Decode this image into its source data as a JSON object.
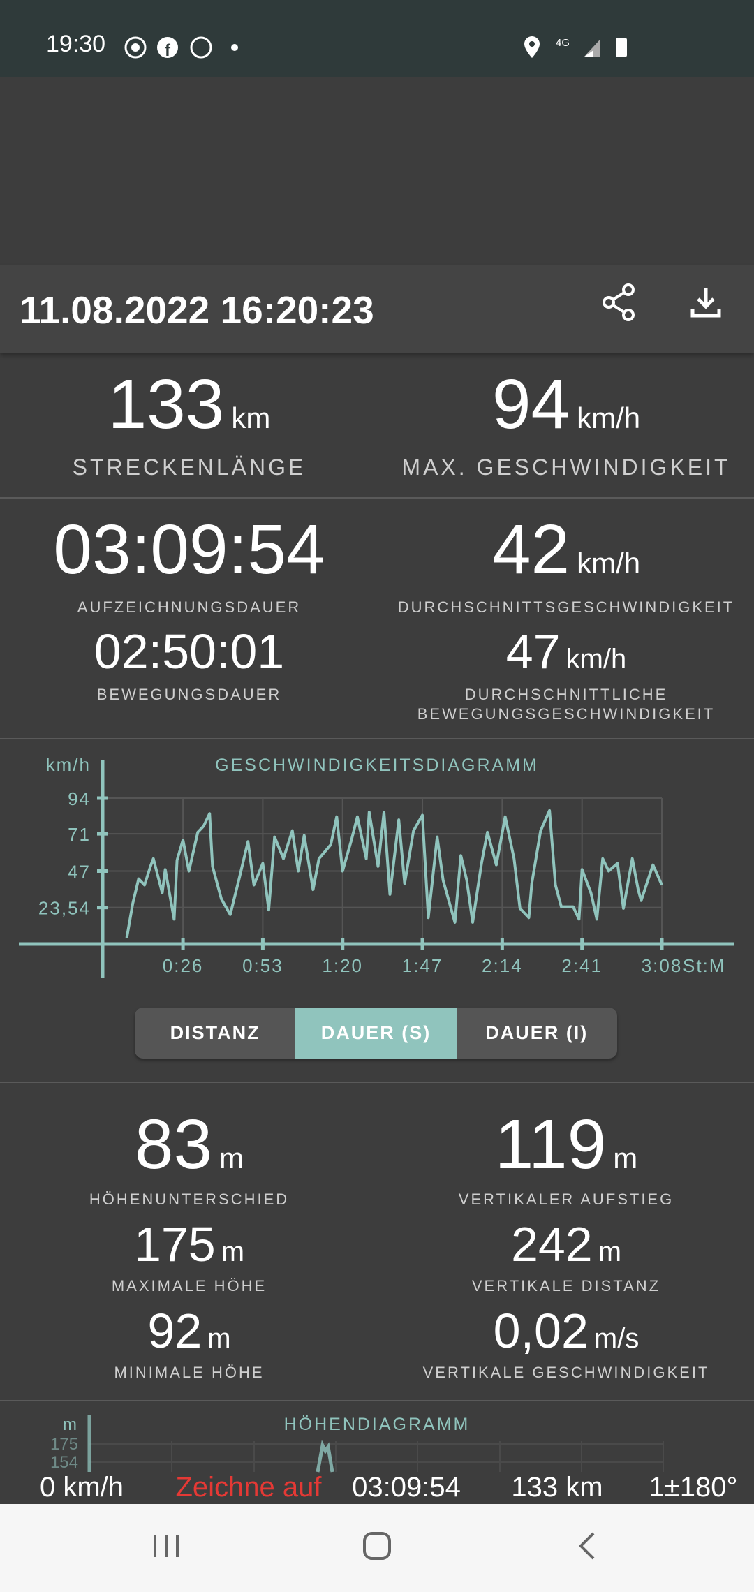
{
  "status_bar": {
    "time": "19:30",
    "network": "4G",
    "icons": [
      "record-icon",
      "facebook-icon",
      "whatsapp-icon",
      "dot-icon",
      "location-icon",
      "signal-icon",
      "battery-icon"
    ]
  },
  "header": {
    "title": "11.08.2022 16:20:23",
    "share_icon": "share-icon",
    "download_icon": "download-icon"
  },
  "summary": {
    "distance": {
      "value": "133",
      "unit": "km",
      "label": "STRECKENLÄNGE"
    },
    "max_speed": {
      "value": "94",
      "unit": "km/h",
      "label": "MAX. GESCHWINDIGKEIT"
    },
    "record_duration": {
      "value": "03:09:54",
      "label": "AUFZEICHNUNGSDAUER"
    },
    "moving_duration": {
      "value": "02:50:01",
      "label": "BEWEGUNGSDAUER"
    },
    "avg_speed": {
      "value": "42",
      "unit": "km/h",
      "label": "DURCHSCHNITTSGESCHWINDIGKEIT"
    },
    "avg_moving_speed": {
      "value": "47",
      "unit": "km/h",
      "label1": "DURCHSCHNITTLICHE",
      "label2": "BEWEGUNGSGESCHWINDIGKEIT"
    }
  },
  "chart_data": {
    "type": "line",
    "title": "GESCHWINDIGKEITSDIAGRAMM",
    "ylabel": "km/h",
    "xlabel": "St:M",
    "yticks": [
      "94",
      "71",
      "47",
      "23,54"
    ],
    "ytick_values": [
      94,
      71,
      47,
      23.54
    ],
    "xticks": [
      "0:26",
      "0:53",
      "1:20",
      "1:47",
      "2:14",
      "2:41",
      "3:08"
    ],
    "xtick_minutes": [
      26,
      53,
      80,
      107,
      134,
      161,
      188
    ],
    "xlim_minutes": [
      0,
      188
    ],
    "ylim": [
      0,
      94
    ],
    "grid": true,
    "color": "#90c4bd",
    "x_minutes": [
      7,
      9,
      11,
      13,
      15,
      16,
      19,
      20,
      23,
      24,
      26,
      28,
      31,
      33,
      35,
      36,
      39,
      42,
      45,
      48,
      50,
      53,
      55,
      57,
      60,
      63,
      65,
      67,
      70,
      72,
      76,
      78,
      80,
      83,
      85,
      88,
      89,
      92,
      94,
      96,
      99,
      101,
      104,
      107,
      109,
      112,
      114,
      118,
      120,
      122,
      124,
      127,
      129,
      132,
      135,
      138,
      140,
      143,
      144,
      147,
      150,
      152,
      154,
      158,
      160,
      161,
      164,
      166,
      168,
      170,
      173,
      175,
      178,
      180,
      181,
      185,
      188
    ],
    "y": [
      4,
      26,
      42,
      38,
      50,
      55,
      33,
      48,
      16,
      54,
      67,
      47,
      72,
      76,
      84,
      50,
      29,
      19,
      42,
      66,
      38,
      52,
      22,
      69,
      55,
      73,
      47,
      70,
      35,
      55,
      64,
      82,
      47,
      67,
      82,
      55,
      85,
      50,
      85,
      32,
      80,
      39,
      73,
      83,
      17,
      69,
      41,
      14,
      57,
      41,
      14,
      52,
      72,
      51,
      82,
      55,
      23,
      17,
      39,
      73,
      86,
      38,
      24,
      24,
      16,
      48,
      33,
      16,
      55,
      47,
      52,
      23,
      55,
      35,
      28,
      51,
      38
    ]
  },
  "mode_toggle": {
    "options": [
      "DISTANZ",
      "DAUER (S)",
      "DAUER (I)"
    ],
    "selected": "DAUER (S)"
  },
  "elevation": {
    "diff": {
      "value": "83",
      "unit": "m",
      "label": "HÖHENUNTERSCHIED"
    },
    "ascent": {
      "value": "119",
      "unit": "m",
      "label": "VERTIKALER AUFSTIEG"
    },
    "max": {
      "value": "175",
      "unit": "m",
      "label": "MAXIMALE HÖHE"
    },
    "vdist": {
      "value": "242",
      "unit": "m",
      "label": "VERTIKALE DISTANZ"
    },
    "min": {
      "value": "92",
      "unit": "m",
      "label": "MINIMALE HÖHE"
    },
    "vspeed": {
      "value": "0,02",
      "unit": "m/s",
      "label": "VERTIKALE GESCHWINDIGKEIT"
    }
  },
  "elevation_chart": {
    "title": "HÖHENDIAGRAMM",
    "ylabel": "m",
    "yticks": [
      "175",
      "154"
    ]
  },
  "overlay": {
    "speed": "0 km/h",
    "status": "Zeichne auf",
    "duration": "03:09:54",
    "distance": "133 km",
    "accuracy": "1±180°",
    "status_color": "#e53935"
  },
  "nav": {
    "icons": [
      "recents-icon",
      "home-icon",
      "back-icon"
    ]
  }
}
